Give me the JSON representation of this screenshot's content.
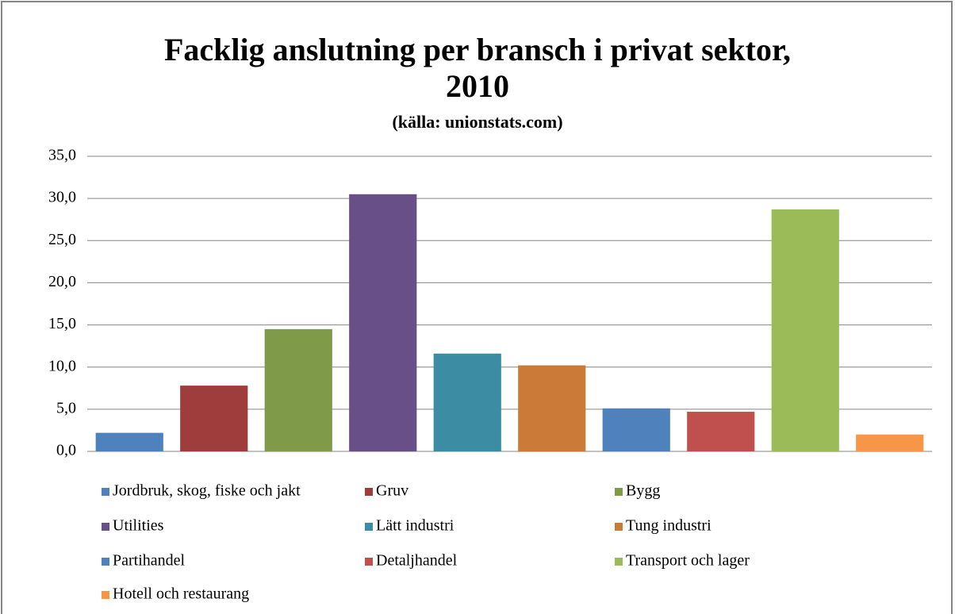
{
  "chart_data": {
    "type": "bar",
    "title": "Facklig anslutning per bransch i privat sektor,\n2010",
    "subtitle": "(källa: unionstats.com)",
    "categories": [
      "Jordbruk, skog, fiske och jakt",
      "Gruv",
      "Bygg",
      "Utilities",
      "Lätt industri",
      "Tung industri",
      "Partihandel",
      "Detaljhandel",
      "Transport och lager",
      "Hotell och restaurang"
    ],
    "values": [
      2.2,
      7.8,
      14.5,
      30.5,
      11.6,
      10.2,
      5.1,
      4.7,
      28.7,
      2.0
    ],
    "colors": [
      "#4f81bd",
      "#9e3d3b",
      "#7f9a48",
      "#684f87",
      "#3c8da3",
      "#cc7a38",
      "#4f81bd",
      "#c0504d",
      "#9bbb59",
      "#f79646"
    ],
    "ylim": [
      0,
      35
    ],
    "yticks": [
      {
        "value": 0,
        "label": "0,0"
      },
      {
        "value": 5,
        "label": "5,0"
      },
      {
        "value": 10,
        "label": "10,0"
      },
      {
        "value": 15,
        "label": "15,0"
      },
      {
        "value": 20,
        "label": "20,0"
      },
      {
        "value": 25,
        "label": "25,0"
      },
      {
        "value": 30,
        "label": "30,0"
      },
      {
        "value": 35,
        "label": "35,0"
      }
    ],
    "grid": true,
    "legend": "bottom"
  }
}
